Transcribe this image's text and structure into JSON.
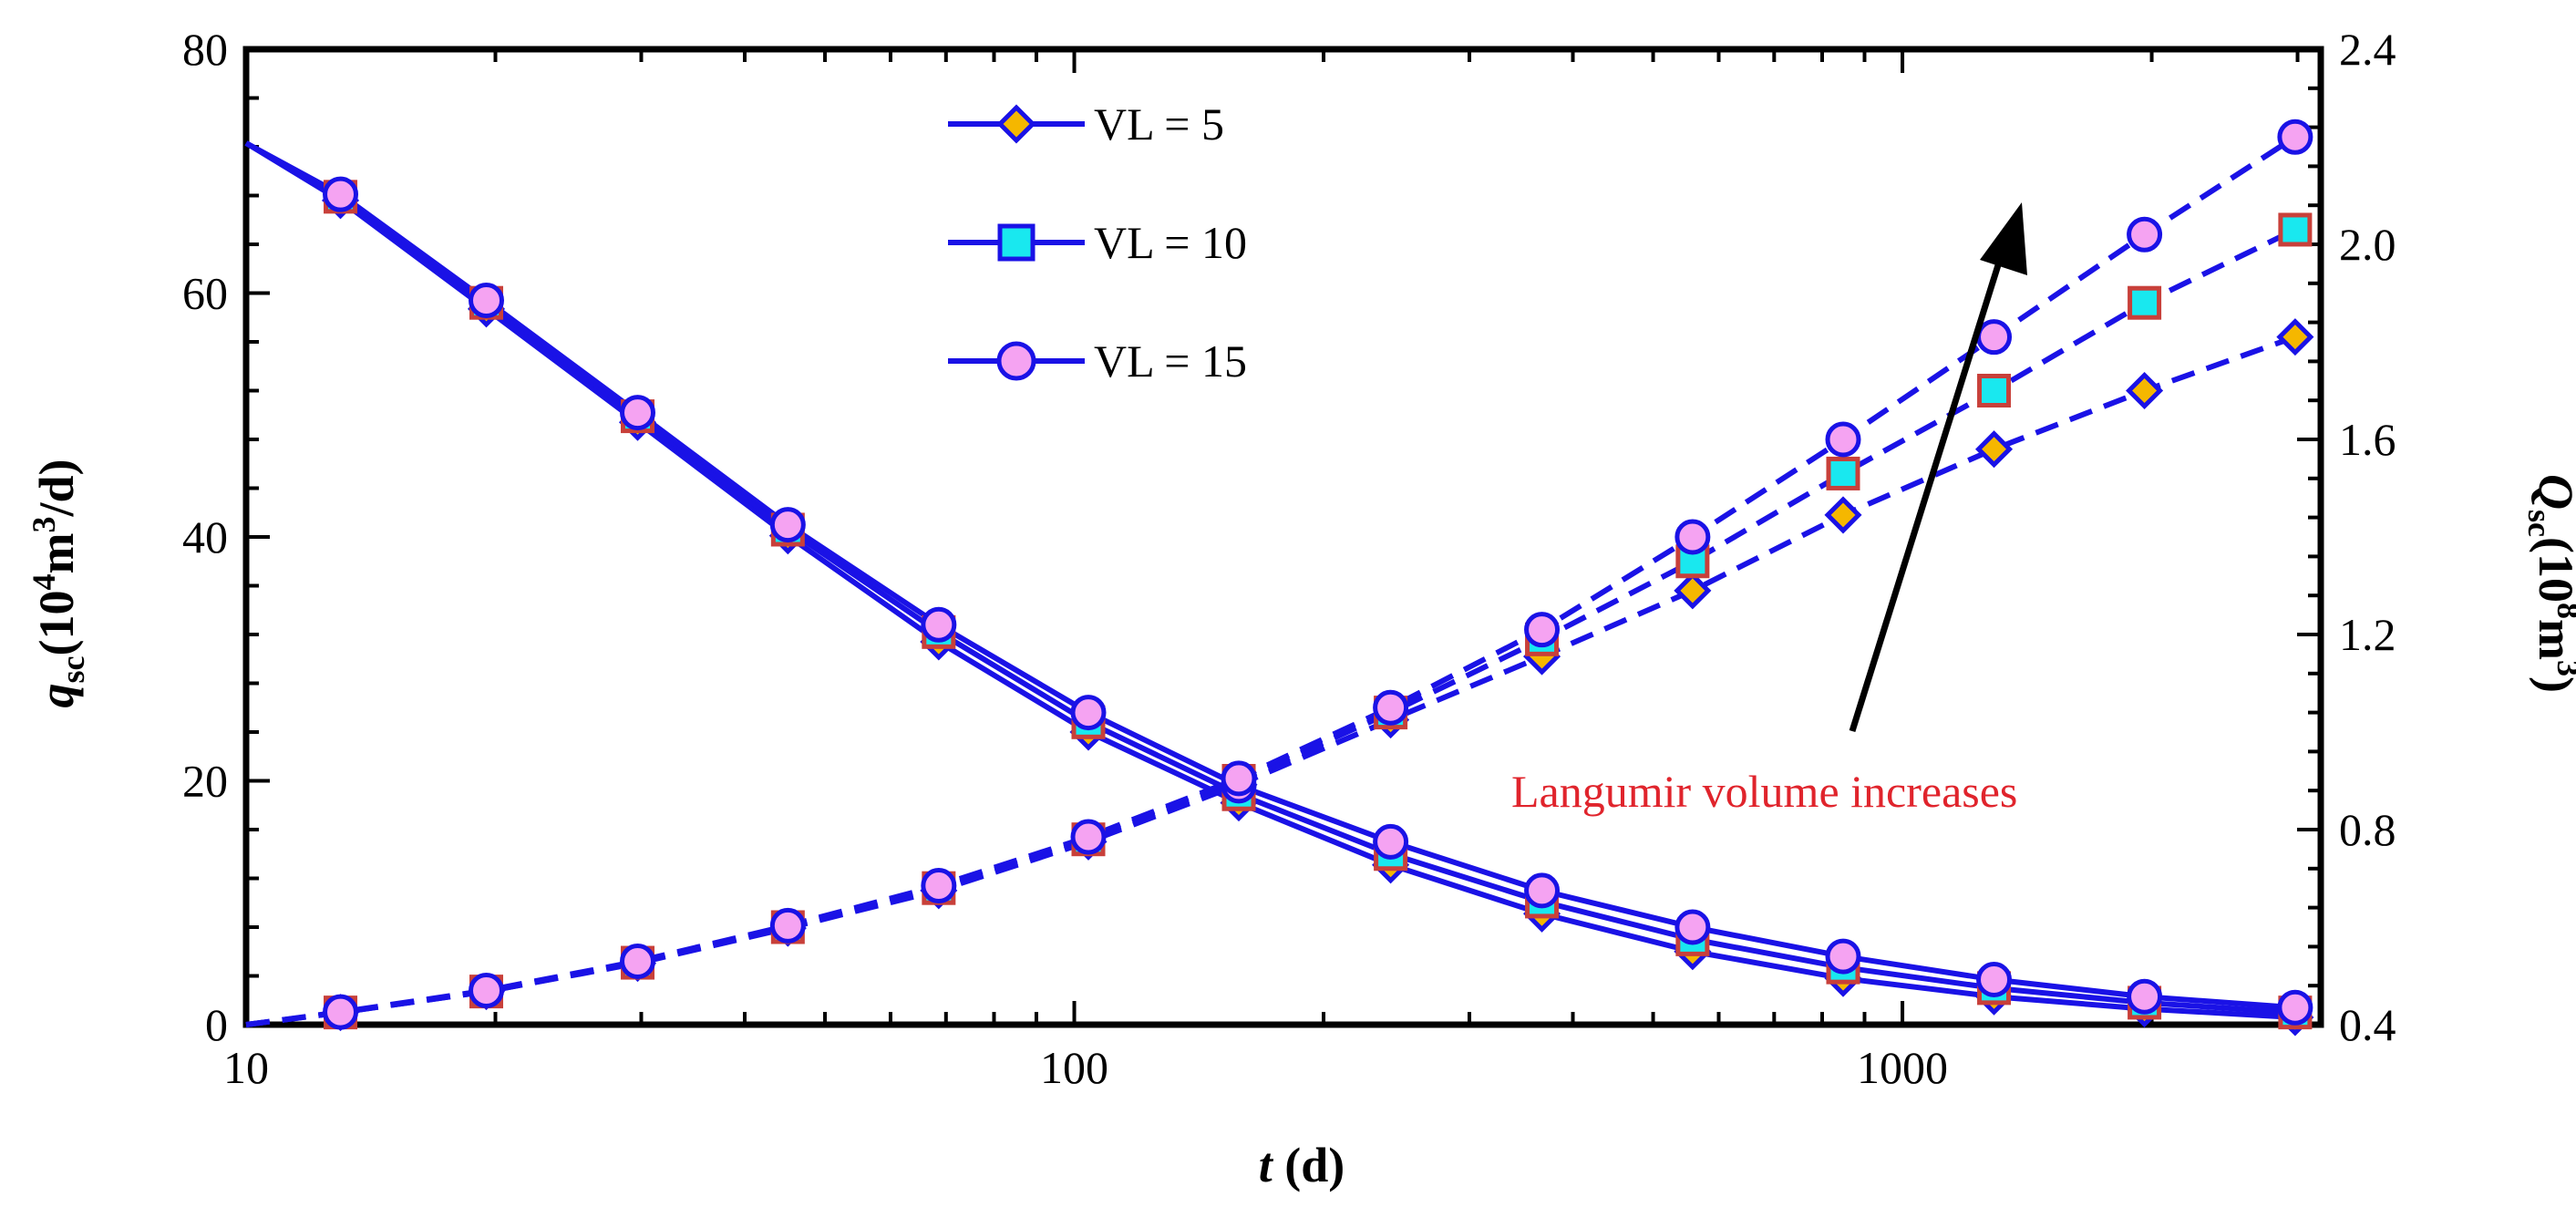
{
  "chart_data": {
    "type": "line",
    "x_label": {
      "italic": "t",
      "rest": " (d)"
    },
    "y_left_label": {
      "main": "q",
      "sub": "sc",
      "rest_pre": "(10",
      "sup": "4",
      "rest_mid": "m",
      "sup2": "3",
      "rest_post": "/d)"
    },
    "y_right_label": {
      "main": "Q",
      "sub": "sc",
      "rest_pre": "(10",
      "sup": "8",
      "rest_mid": "m",
      "sup2": "3",
      "rest_post": ")"
    },
    "x_scale": "log",
    "x_range": [
      10,
      3200
    ],
    "x_ticks": [
      10,
      100,
      1000
    ],
    "x_tick_labels": [
      "10",
      "100",
      "1000"
    ],
    "y_left_range": [
      0,
      80
    ],
    "y_left_ticks": [
      0,
      20,
      40,
      60,
      80
    ],
    "y_left_tick_labels": [
      "0",
      "20",
      "40",
      "60",
      "80"
    ],
    "y_right_range": [
      0.4,
      2.4
    ],
    "y_right_ticks": [
      0.4,
      0.8,
      1.2,
      1.6,
      2.0,
      2.4
    ],
    "y_right_tick_labels": [
      "0.4",
      "0.8",
      "1.2",
      "1.6",
      "2.0",
      "2.4"
    ],
    "x_marker": [
      13,
      19.5,
      29.7,
      45.1,
      68.6,
      104,
      158,
      241,
      367,
      558,
      848,
      1290,
      1960,
      2980
    ],
    "rate_series": [
      {
        "name": "VL = 5",
        "y0": 72.3,
        "values": [
          67.6,
          58.7,
          49.4,
          40.1,
          31.4,
          24.0,
          18.2,
          13.1,
          9.1,
          6.0,
          3.8,
          2.3,
          1.3,
          0.6
        ]
      },
      {
        "name": "VL = 10",
        "y0": 72.3,
        "values": [
          67.9,
          59.2,
          49.9,
          40.6,
          32.2,
          24.8,
          18.9,
          14.0,
          10.1,
          7.0,
          4.7,
          3.0,
          1.8,
          1.0
        ]
      },
      {
        "name": "VL = 15",
        "y0": 72.3,
        "values": [
          68.1,
          59.4,
          50.2,
          41.0,
          32.8,
          25.6,
          19.6,
          15.0,
          11.0,
          8.0,
          5.6,
          3.7,
          2.3,
          1.4
        ]
      }
    ],
    "cum_series": [
      {
        "name": "VL = 5",
        "y0": 0.4,
        "values": [
          0.425,
          0.468,
          0.526,
          0.598,
          0.675,
          0.775,
          0.892,
          1.025,
          1.155,
          1.29,
          1.445,
          1.58,
          1.7,
          1.81
        ]
      },
      {
        "name": "VL = 10",
        "y0": 0.4,
        "values": [
          0.425,
          0.468,
          0.527,
          0.6,
          0.68,
          0.78,
          0.9,
          1.04,
          1.19,
          1.35,
          1.53,
          1.7,
          1.88,
          2.03
        ]
      },
      {
        "name": "VL = 15",
        "y0": 0.4,
        "values": [
          0.426,
          0.47,
          0.53,
          0.603,
          0.685,
          0.785,
          0.905,
          1.05,
          1.21,
          1.4,
          1.6,
          1.81,
          2.02,
          2.22
        ]
      }
    ],
    "legend": [
      "VL = 5",
      "VL = 10",
      "VL = 15"
    ],
    "legend_position": "top-center",
    "annotation": "Langumir volume increases",
    "colors": {
      "line": "#1a12e6",
      "diamond_fill": "#f5b700",
      "square_fill": "#19e8ef",
      "square_edge": "#c8403a",
      "circle_fill": "#f5a3f2",
      "annotation_text": "#e0242c",
      "arrow": "#000000"
    }
  }
}
